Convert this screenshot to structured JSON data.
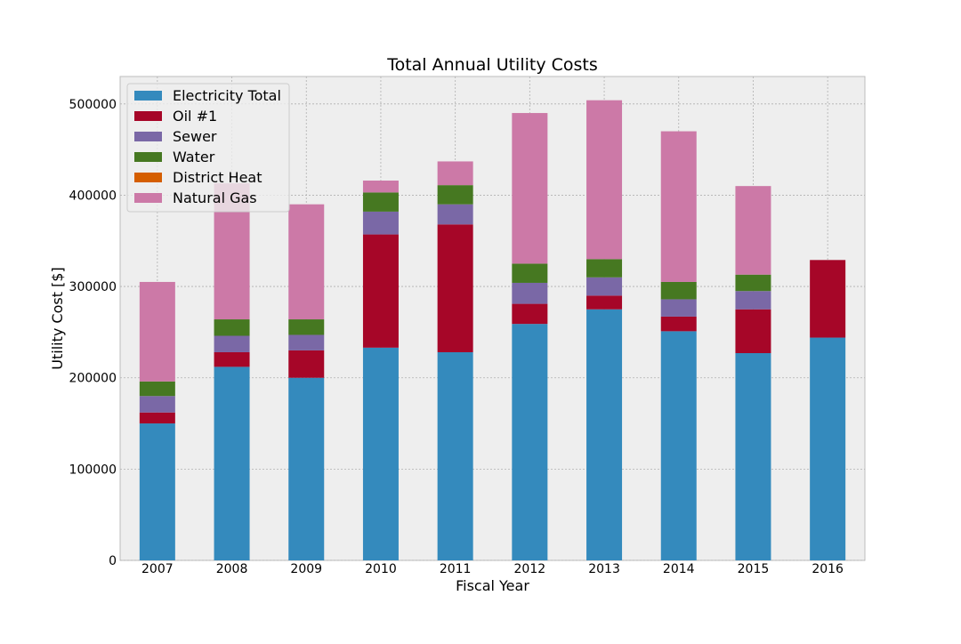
{
  "chart_data": {
    "type": "bar",
    "stacked": true,
    "title": "Total Annual Utility Costs",
    "xlabel": "Fiscal Year",
    "ylabel": "Utility Cost [$]",
    "ylim": [
      0,
      530000
    ],
    "yticks": [
      0,
      100000,
      200000,
      300000,
      400000,
      500000
    ],
    "grid": true,
    "legend_position": "top-left",
    "background_color": "#eeeeee",
    "categories": [
      "2007",
      "2008",
      "2009",
      "2010",
      "2011",
      "2012",
      "2013",
      "2014",
      "2015",
      "2016"
    ],
    "series": [
      {
        "name": "Electricity Total",
        "color": "#348abd",
        "values": [
          150000,
          212000,
          200000,
          233000,
          228000,
          259000,
          275000,
          251000,
          227000,
          244000
        ]
      },
      {
        "name": "Oil #1",
        "color": "#a60628",
        "values": [
          12000,
          16000,
          30000,
          124000,
          140000,
          22000,
          15000,
          16000,
          48000,
          85000
        ]
      },
      {
        "name": "Sewer",
        "color": "#7a68a6",
        "values": [
          18000,
          18000,
          17000,
          25000,
          22000,
          23000,
          20000,
          19000,
          20000,
          0
        ]
      },
      {
        "name": "Water",
        "color": "#467821",
        "values": [
          16000,
          18000,
          17000,
          21000,
          21000,
          21000,
          20000,
          19000,
          18000,
          0
        ]
      },
      {
        "name": "District Heat",
        "color": "#d55e00",
        "values": [
          0,
          0,
          0,
          0,
          0,
          0,
          0,
          0,
          0,
          0
        ]
      },
      {
        "name": "Natural Gas",
        "color": "#cc79a7",
        "values": [
          109000,
          149000,
          126000,
          13000,
          26000,
          165000,
          174000,
          165000,
          97000,
          0
        ]
      }
    ]
  }
}
